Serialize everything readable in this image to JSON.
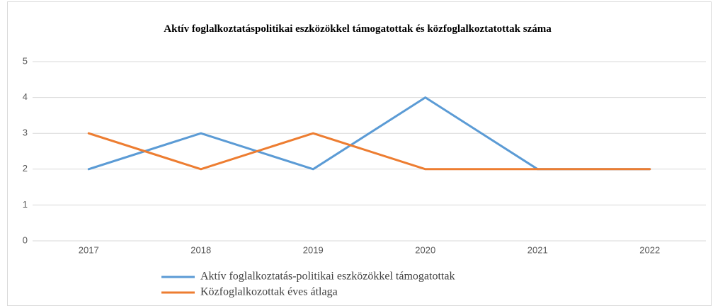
{
  "chart_data": {
    "type": "line",
    "title": "Aktív foglalkoztatáspolitikai eszközökkel támogatottak és közfoglalkoztatottak száma",
    "categories": [
      "2017",
      "2018",
      "2019",
      "2020",
      "2021",
      "2022"
    ],
    "series": [
      {
        "name": "Aktív foglalkoztatás-politikai eszközökkel támogatottak",
        "color": "#5b9bd5",
        "values": [
          2,
          3,
          2,
          4,
          2,
          2
        ]
      },
      {
        "name": "Közfoglalkozottak éves átlaga",
        "color": "#ed7d31",
        "values": [
          3,
          2,
          3,
          2,
          2,
          2
        ]
      }
    ],
    "ylim": [
      0,
      5
    ],
    "yticks": [
      0,
      1,
      2,
      3,
      4,
      5
    ],
    "grid": true
  }
}
